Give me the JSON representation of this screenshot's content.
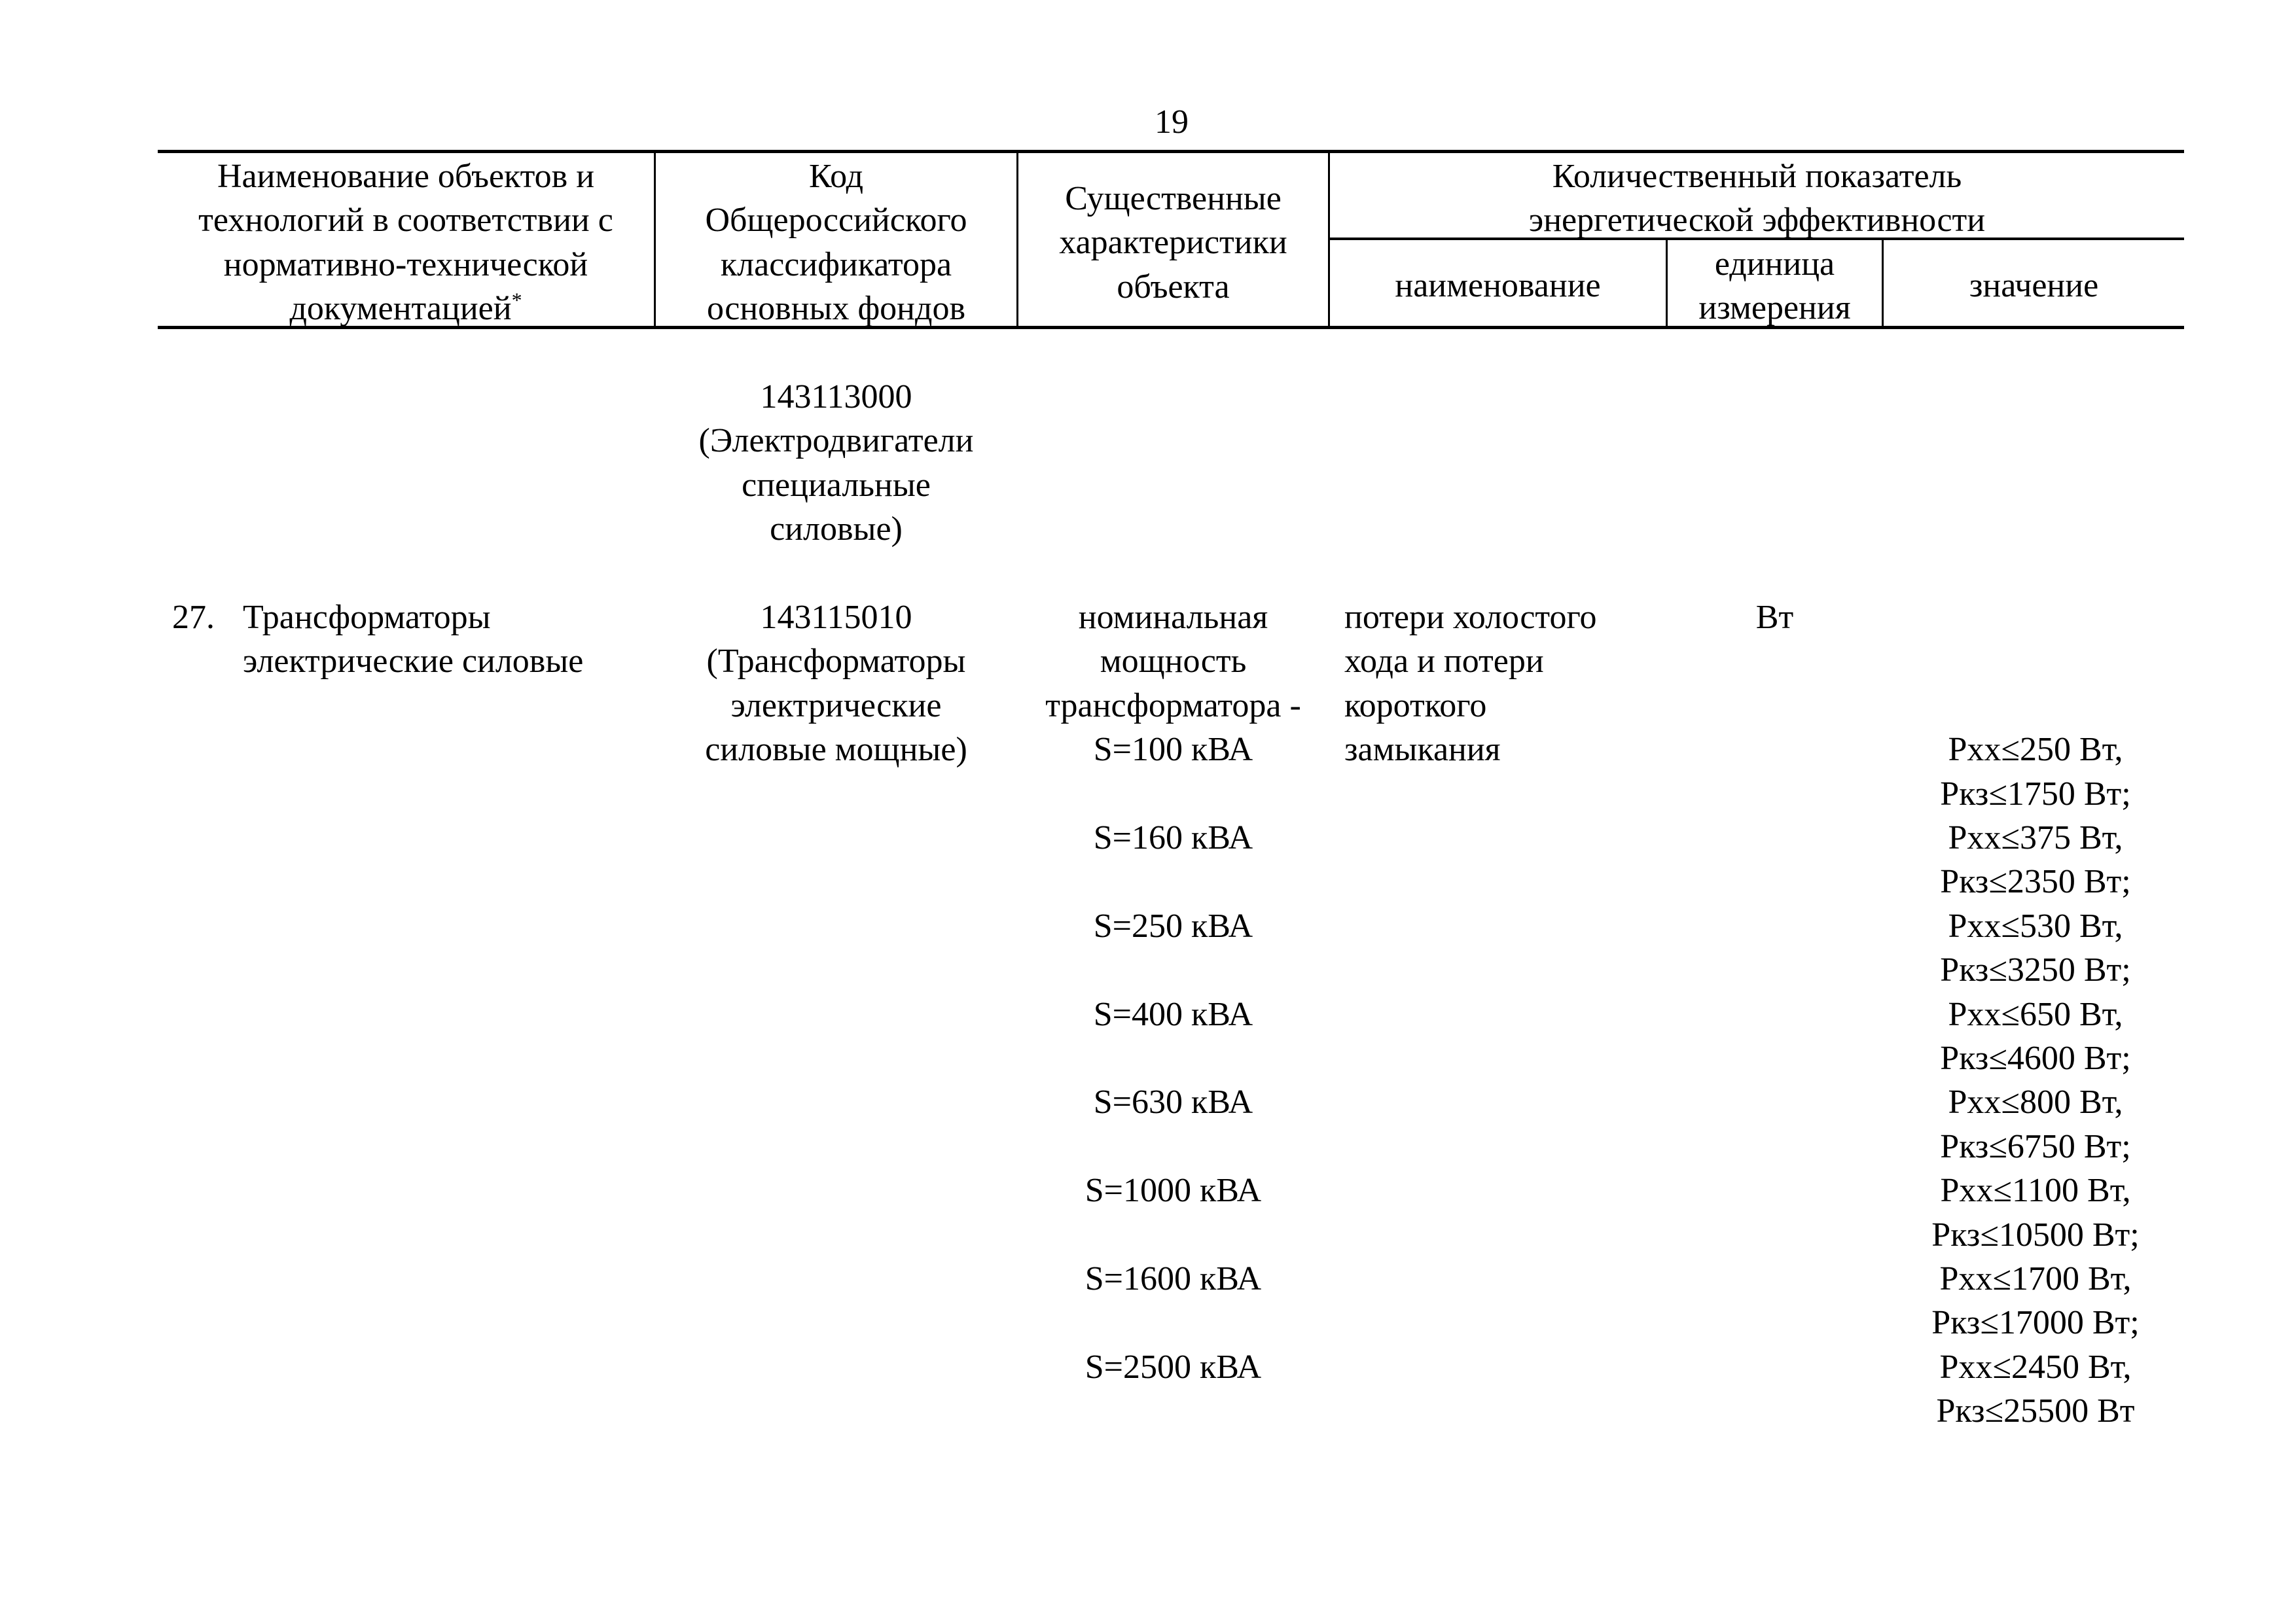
{
  "page_number": "19",
  "header": {
    "col_name": "Наименование объектов и\nтехнологий в соответствии с\nнормативно-технической\nдокументацией",
    "col_name_footnote_mark": "*",
    "col_code": "Код\nОбщероссийского\nклассификатора\nосновных фондов",
    "col_characteristics": "Существенные\nхарактеристики\nобъекта",
    "col_indicator": "Количественный показатель\nэнергетической эффективности",
    "sub_name": "наименование",
    "sub_unit": "единица\nизмерения",
    "sub_value": "значение"
  },
  "rows": [
    {
      "code": "143113000\n(Электродвигатели\nспециальные\nсиловые)"
    },
    {
      "number": "27.",
      "name": "Трансформаторы\nэлектрические силовые",
      "code": "143115010\n(Трансформаторы\nэлектрические\nсиловые мощные)",
      "characteristic_intro": "номинальная\nмощность\nтрансформатора -",
      "indicator_name": "потери холостого\nхода и потери\nкороткого\nзамыкания",
      "unit": "Вт",
      "items": [
        {
          "power": "S=100 кВА",
          "pxx": "Рхх≤250 Вт,",
          "pkz": "Ркз≤1750 Вт;"
        },
        {
          "power": "S=160 кВА",
          "pxx": "Рхх≤375 Вт,",
          "pkz": "Ркз≤2350 Вт;"
        },
        {
          "power": "S=250 кВА",
          "pxx": "Рхх≤530 Вт,",
          "pkz": "Ркз≤3250 Вт;"
        },
        {
          "power": "S=400 кВА",
          "pxx": "Рхх≤650 Вт,",
          "pkz": "Ркз≤4600 Вт;"
        },
        {
          "power": "S=630 кВА",
          "pxx": "Рхх≤800 Вт,",
          "pkz": "Ркз≤6750 Вт;"
        },
        {
          "power": "S=1000 кВА",
          "pxx": "Рхх≤1100 Вт,",
          "pkz": "Ркз≤10500 Вт;"
        },
        {
          "power": "S=1600 кВА",
          "pxx": "Рхх≤1700 Вт,",
          "pkz": "Ркз≤17000 Вт;"
        },
        {
          "power": "S=2500 кВА",
          "pxx": "Рхх≤2450 Вт,",
          "pkz": "Ркз≤25500 Вт"
        }
      ]
    }
  ]
}
